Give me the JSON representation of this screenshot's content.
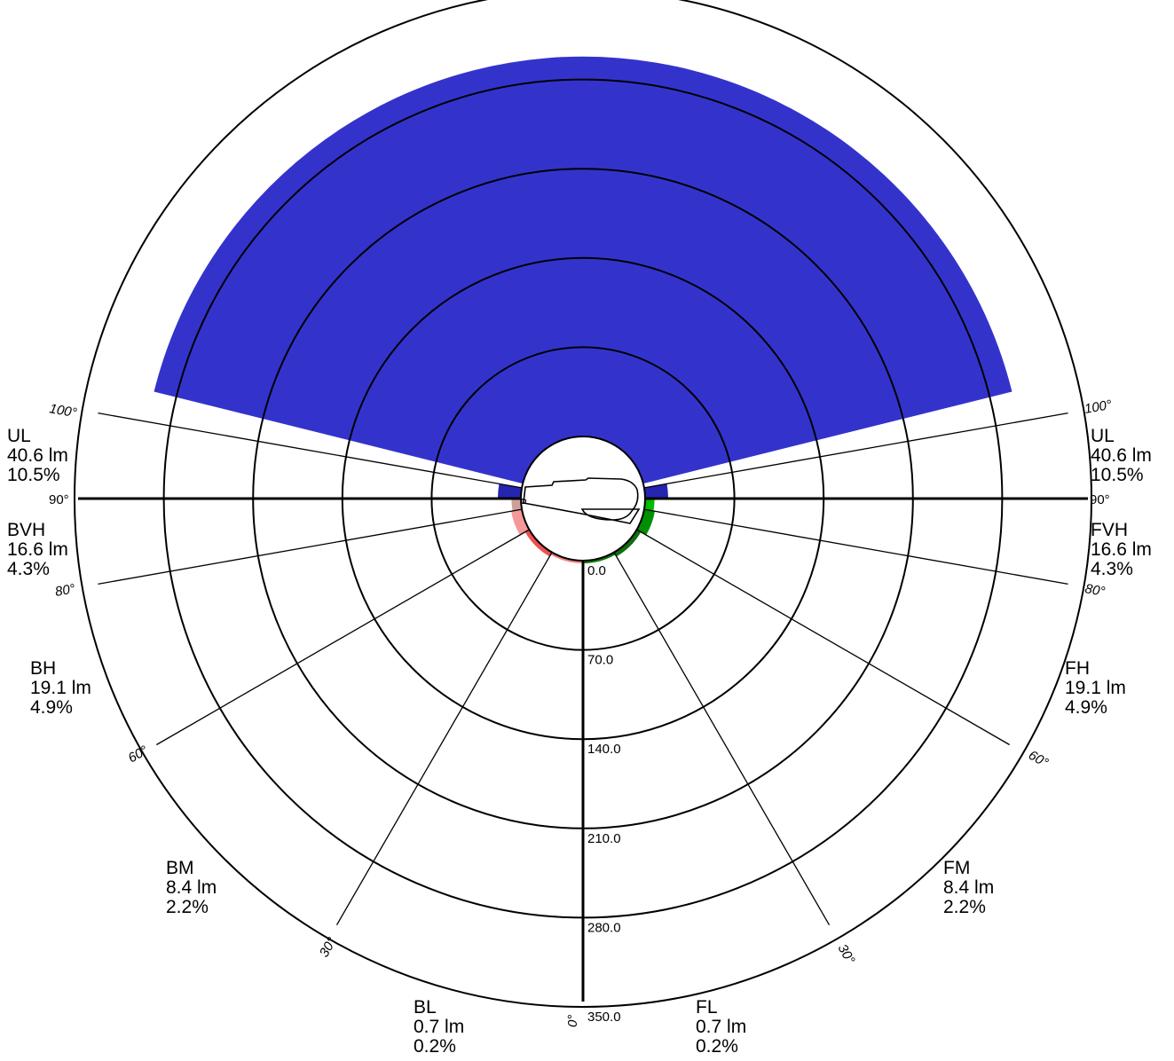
{
  "chart_data": {
    "type": "polar-zonal-lumens",
    "radial_axis": {
      "min": 0,
      "max": 350,
      "tick_labels": [
        "0.0",
        "70.0",
        "140.0",
        "210.0",
        "280.0",
        "350.0"
      ]
    },
    "angle_marks": [
      {
        "label": "0°",
        "angle": 0,
        "side": "center"
      },
      {
        "label": "30°",
        "angle": 30,
        "side": "left"
      },
      {
        "label": "30°",
        "angle": 30,
        "side": "right"
      },
      {
        "label": "60°",
        "angle": 60,
        "side": "left"
      },
      {
        "label": "60°",
        "angle": 60,
        "side": "right"
      },
      {
        "label": "80°",
        "angle": 80,
        "side": "left"
      },
      {
        "label": "80°",
        "angle": 80,
        "side": "right"
      },
      {
        "label": "90°",
        "angle": 90,
        "side": "left"
      },
      {
        "label": "90°",
        "angle": 90,
        "side": "right"
      },
      {
        "label": "100°",
        "angle": 100,
        "side": "left"
      },
      {
        "label": "100°",
        "angle": 100,
        "side": "right"
      }
    ],
    "zones": [
      {
        "name": "BL",
        "lumens": "0.7 lm",
        "percent": "0.2%",
        "from": 0,
        "to": 30,
        "side": "left",
        "value": 0.7,
        "color": "#f08080"
      },
      {
        "name": "BM",
        "lumens": "8.4 lm",
        "percent": "2.2%",
        "from": 30,
        "to": 60,
        "side": "left",
        "value": 8.4,
        "color": "#f05050"
      },
      {
        "name": "BH",
        "lumens": "19.1 lm",
        "percent": "4.9%",
        "from": 60,
        "to": 80,
        "side": "left",
        "value": 19.1,
        "color": "#f79898"
      },
      {
        "name": "BVH",
        "lumens": "16.6 lm",
        "percent": "4.3%",
        "from": 80,
        "to": 90,
        "side": "left",
        "value": 16.6,
        "color": "#cfa09a"
      },
      {
        "name": "UL",
        "lumens": "40.6 lm",
        "percent": "10.5%",
        "from": 90,
        "to": 100,
        "side": "left",
        "value": 40.6,
        "color": "#2525b0"
      },
      {
        "name": "FL",
        "lumens": "0.7 lm",
        "percent": "0.2%",
        "from": 0,
        "to": 30,
        "side": "right",
        "value": 0.7,
        "color": "#0b7a0b"
      },
      {
        "name": "FM",
        "lumens": "8.4 lm",
        "percent": "2.2%",
        "from": 30,
        "to": 60,
        "side": "right",
        "value": 8.4,
        "color": "#0e6e0e"
      },
      {
        "name": "FH",
        "lumens": "19.1 lm",
        "percent": "4.9%",
        "from": 60,
        "to": 80,
        "side": "right",
        "value": 19.1,
        "color": "#008f00"
      },
      {
        "name": "FVH",
        "lumens": "16.6 lm",
        "percent": "4.3%",
        "from": 80,
        "to": 90,
        "side": "right",
        "value": 16.6,
        "color": "#00bb00"
      },
      {
        "name": "UL",
        "lumens": "40.6 lm",
        "percent": "10.5%",
        "from": 90,
        "to": 100,
        "side": "right",
        "value": 40.6,
        "color": "#2525b0"
      }
    ],
    "uplight_wedge": {
      "from_angle": 104,
      "to_angle": 256,
      "value": 298,
      "color": "#3333cc"
    }
  }
}
